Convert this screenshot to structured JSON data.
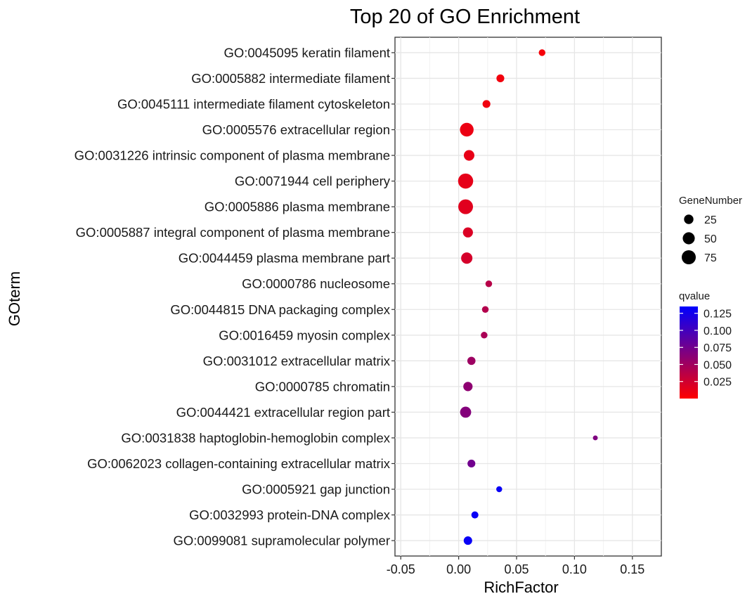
{
  "chart_data": {
    "type": "scatter",
    "title": "Top 20 of GO Enrichment",
    "xlabel": "RichFactor",
    "ylabel": "GOterm",
    "xlim": [
      -0.055,
      0.175
    ],
    "xticks": [
      -0.05,
      0.0,
      0.05,
      0.1,
      0.15
    ],
    "xtick_labels": [
      "-0.05",
      "0.00",
      "0.05",
      "0.10",
      "0.15"
    ],
    "grid": true,
    "points": [
      {
        "term": "GO:0045095 keratin filament",
        "rich_factor": 0.072,
        "gene_number": 8,
        "qvalue": 0.005
      },
      {
        "term": "GO:0005882 intermediate filament",
        "rich_factor": 0.036,
        "gene_number": 14,
        "qvalue": 0.007
      },
      {
        "term": "GO:0045111 intermediate filament cytoskeleton",
        "rich_factor": 0.024,
        "gene_number": 14,
        "qvalue": 0.008
      },
      {
        "term": "GO:0005576 extracellular region",
        "rich_factor": 0.007,
        "gene_number": 70,
        "qvalue": 0.01
      },
      {
        "term": "GO:0031226 intrinsic component of plasma membrane",
        "rich_factor": 0.009,
        "gene_number": 35,
        "qvalue": 0.012
      },
      {
        "term": "GO:0071944 cell periphery",
        "rich_factor": 0.006,
        "gene_number": 90,
        "qvalue": 0.013
      },
      {
        "term": "GO:0005886 plasma membrane",
        "rich_factor": 0.006,
        "gene_number": 85,
        "qvalue": 0.016
      },
      {
        "term": "GO:0005887 integral component of plasma membrane",
        "rich_factor": 0.008,
        "gene_number": 30,
        "qvalue": 0.019
      },
      {
        "term": "GO:0044459 plasma membrane part",
        "rich_factor": 0.007,
        "gene_number": 42,
        "qvalue": 0.022
      },
      {
        "term": "GO:0000786 nucleosome",
        "rich_factor": 0.026,
        "gene_number": 8,
        "qvalue": 0.038
      },
      {
        "term": "GO:0044815 DNA packaging complex",
        "rich_factor": 0.023,
        "gene_number": 8,
        "qvalue": 0.04
      },
      {
        "term": "GO:0016459 myosin complex",
        "rich_factor": 0.022,
        "gene_number": 8,
        "qvalue": 0.045
      },
      {
        "term": "GO:0031012 extracellular matrix",
        "rich_factor": 0.011,
        "gene_number": 16,
        "qvalue": 0.052
      },
      {
        "term": "GO:0000785 chromatin",
        "rich_factor": 0.008,
        "gene_number": 24,
        "qvalue": 0.06
      },
      {
        "term": "GO:0044421 extracellular region part",
        "rich_factor": 0.006,
        "gene_number": 40,
        "qvalue": 0.065
      },
      {
        "term": "GO:0031838 haptoglobin-hemoglobin complex",
        "rich_factor": 0.118,
        "gene_number": 2,
        "qvalue": 0.068
      },
      {
        "term": "GO:0062023 collagen-containing extracellular matrix",
        "rich_factor": 0.011,
        "gene_number": 14,
        "qvalue": 0.075
      },
      {
        "term": "GO:0005921 gap junction",
        "rich_factor": 0.035,
        "gene_number": 5,
        "qvalue": 0.13
      },
      {
        "term": "GO:0032993 protein-DNA complex",
        "rich_factor": 0.014,
        "gene_number": 10,
        "qvalue": 0.13
      },
      {
        "term": "GO:0099081 supramolecular polymer",
        "rich_factor": 0.008,
        "gene_number": 18,
        "qvalue": 0.13
      }
    ],
    "size_legend": {
      "title": "GeneNumber",
      "values": [
        25,
        50,
        75
      ],
      "labels": [
        "25",
        "50",
        "75"
      ]
    },
    "color_legend": {
      "title": "qvalue",
      "min": 0.0,
      "max": 0.135,
      "low_color": "#ff0000",
      "high_color": "#0000ff",
      "ticks": [
        0.125,
        0.1,
        0.075,
        0.05,
        0.025
      ],
      "tick_labels": [
        "0.125",
        "0.100",
        "0.075",
        "0.050",
        "0.025"
      ]
    }
  }
}
